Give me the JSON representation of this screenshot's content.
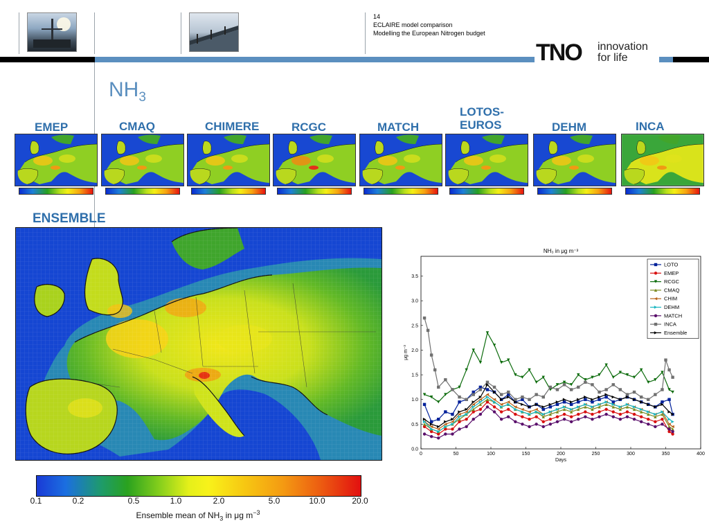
{
  "header": {
    "slide_number": "14",
    "line1": "ECLAIRE model comparison",
    "line2": "Modelling the European Nitrogen budget",
    "brand": "TNO",
    "tagline_1": "innovation",
    "tagline_2": "for life"
  },
  "title": {
    "main": "NH",
    "sub": "3"
  },
  "models": {
    "emep": "EMEP",
    "cmaq": "CMAQ",
    "chimere": "CHIMERE",
    "rcgc": "RCGC",
    "match": "MATCH",
    "lotos_1": "LOTOS-",
    "lotos_2": "EUROS",
    "dehm": "DEHM",
    "inca": "INCA"
  },
  "ensemble": {
    "label": "ENSEMBLE",
    "colorbar_ticks": [
      "0.1",
      "0.2",
      "0.5",
      "1.0",
      "2.0",
      "5.0",
      "10.0",
      "20.0"
    ],
    "colorbar_label_prefix": "Ensemble mean of NH",
    "colorbar_label_sub": "3",
    "colorbar_label_suffix": " in μg m",
    "colorbar_label_sup": "−3"
  },
  "chart_data": {
    "type": "line",
    "title": "NH₃ in μg m⁻³",
    "xlabel": "Days",
    "ylabel": "μg m⁻³",
    "xlim": [
      0,
      400
    ],
    "ylim": [
      0.0,
      3.9
    ],
    "xticks": [
      0,
      50,
      100,
      150,
      200,
      250,
      300,
      350,
      400
    ],
    "yticks": [
      0.0,
      0.5,
      1.0,
      1.5,
      2.0,
      2.5,
      3.0,
      3.5
    ],
    "legend_position": "top-right",
    "series": [
      {
        "name": "LOTO",
        "color": "#00209a",
        "marker": "square",
        "x": [
          5,
          15,
          25,
          35,
          45,
          55,
          65,
          75,
          85,
          95,
          105,
          115,
          125,
          135,
          145,
          155,
          165,
          175,
          185,
          195,
          205,
          215,
          225,
          235,
          245,
          255,
          265,
          275,
          285,
          295,
          305,
          315,
          325,
          335,
          345,
          355,
          360
        ],
        "y": [
          0.9,
          0.55,
          0.6,
          0.75,
          0.7,
          0.95,
          1.0,
          1.15,
          1.25,
          1.2,
          1.15,
          1.0,
          1.1,
          0.95,
          1.0,
          0.85,
          0.9,
          0.8,
          0.85,
          0.9,
          0.95,
          0.9,
          0.95,
          1.0,
          0.95,
          1.0,
          1.05,
          0.95,
          1.0,
          1.05,
          1.0,
          0.95,
          0.9,
          0.85,
          0.95,
          1.0,
          0.7
        ]
      },
      {
        "name": "EMEP",
        "color": "#d81010",
        "marker": "circle",
        "x": [
          5,
          15,
          25,
          35,
          45,
          55,
          65,
          75,
          85,
          95,
          105,
          115,
          125,
          135,
          145,
          155,
          165,
          175,
          185,
          195,
          205,
          215,
          225,
          235,
          245,
          255,
          265,
          275,
          285,
          295,
          305,
          315,
          325,
          335,
          345,
          355,
          360
        ],
        "y": [
          0.45,
          0.35,
          0.3,
          0.4,
          0.4,
          0.55,
          0.6,
          0.75,
          0.8,
          0.95,
          0.85,
          0.75,
          0.8,
          0.7,
          0.65,
          0.6,
          0.65,
          0.55,
          0.6,
          0.65,
          0.7,
          0.65,
          0.7,
          0.75,
          0.7,
          0.75,
          0.8,
          0.75,
          0.7,
          0.75,
          0.7,
          0.65,
          0.6,
          0.55,
          0.6,
          0.35,
          0.3
        ]
      },
      {
        "name": "RCGC",
        "color": "#0b6b0b",
        "marker": "triangle-down",
        "x": [
          5,
          15,
          25,
          35,
          45,
          55,
          65,
          75,
          85,
          95,
          105,
          115,
          125,
          135,
          145,
          155,
          165,
          175,
          185,
          195,
          205,
          215,
          225,
          235,
          245,
          255,
          265,
          275,
          285,
          295,
          305,
          315,
          325,
          335,
          345,
          355,
          360
        ],
        "y": [
          1.1,
          1.05,
          0.95,
          1.1,
          1.2,
          1.25,
          1.6,
          2.0,
          1.75,
          2.35,
          2.1,
          1.75,
          1.8,
          1.5,
          1.45,
          1.6,
          1.35,
          1.45,
          1.2,
          1.3,
          1.35,
          1.3,
          1.5,
          1.4,
          1.45,
          1.5,
          1.7,
          1.45,
          1.55,
          1.5,
          1.45,
          1.6,
          1.35,
          1.4,
          1.55,
          1.2,
          1.15
        ]
      },
      {
        "name": "CMAQ",
        "color": "#7a8a20",
        "marker": "triangle-up",
        "x": [
          5,
          15,
          25,
          35,
          45,
          55,
          65,
          75,
          85,
          95,
          105,
          115,
          125,
          135,
          145,
          155,
          165,
          175,
          185,
          195,
          205,
          215,
          225,
          235,
          245,
          255,
          265,
          275,
          285,
          295,
          305,
          315,
          325,
          335,
          345,
          355,
          360
        ],
        "y": [
          0.5,
          0.4,
          0.35,
          0.45,
          0.5,
          0.6,
          0.7,
          0.8,
          0.9,
          1.0,
          0.95,
          0.85,
          0.9,
          0.8,
          0.75,
          0.7,
          0.75,
          0.65,
          0.7,
          0.75,
          0.8,
          0.75,
          0.8,
          0.85,
          0.8,
          0.85,
          0.9,
          0.85,
          0.8,
          0.85,
          0.8,
          0.75,
          0.7,
          0.65,
          0.7,
          0.45,
          0.4
        ]
      },
      {
        "name": "CHIM",
        "color": "#b8621a",
        "marker": "triangle-left",
        "x": [
          5,
          15,
          25,
          35,
          45,
          55,
          65,
          75,
          85,
          95,
          105,
          115,
          125,
          135,
          145,
          155,
          165,
          175,
          185,
          195,
          205,
          215,
          225,
          235,
          245,
          255,
          265,
          275,
          285,
          295,
          305,
          315,
          325,
          335,
          345,
          355,
          360
        ],
        "y": [
          0.55,
          0.45,
          0.4,
          0.5,
          0.55,
          0.7,
          0.75,
          0.9,
          1.0,
          1.1,
          1.0,
          0.9,
          0.95,
          0.85,
          0.8,
          0.75,
          0.8,
          0.7,
          0.75,
          0.8,
          0.85,
          0.8,
          0.85,
          0.9,
          0.85,
          0.9,
          0.95,
          0.9,
          0.85,
          0.9,
          0.85,
          0.8,
          0.75,
          0.7,
          0.75,
          0.5,
          0.45
        ]
      },
      {
        "name": "DEHM",
        "color": "#18b6c0",
        "marker": "triangle-right",
        "x": [
          5,
          15,
          25,
          35,
          45,
          55,
          65,
          75,
          85,
          95,
          105,
          115,
          125,
          135,
          145,
          155,
          165,
          175,
          185,
          195,
          205,
          215,
          225,
          235,
          245,
          255,
          265,
          275,
          285,
          295,
          305,
          315,
          325,
          335,
          345,
          355,
          360
        ],
        "y": [
          0.55,
          0.4,
          0.35,
          0.45,
          0.5,
          0.65,
          0.7,
          0.85,
          0.95,
          1.05,
          0.95,
          0.85,
          0.9,
          0.8,
          0.75,
          0.7,
          0.75,
          0.7,
          0.75,
          0.8,
          0.85,
          0.8,
          0.85,
          0.9,
          0.85,
          0.9,
          0.95,
          0.9,
          0.85,
          0.9,
          0.85,
          0.8,
          0.75,
          0.7,
          0.75,
          0.6,
          0.55
        ]
      },
      {
        "name": "MATCH",
        "color": "#5a0f6b",
        "marker": "circle",
        "x": [
          5,
          15,
          25,
          35,
          45,
          55,
          65,
          75,
          85,
          95,
          105,
          115,
          125,
          135,
          145,
          155,
          165,
          175,
          185,
          195,
          205,
          215,
          225,
          235,
          245,
          255,
          265,
          275,
          285,
          295,
          305,
          315,
          325,
          335,
          345,
          355,
          360
        ],
        "y": [
          0.3,
          0.25,
          0.22,
          0.3,
          0.3,
          0.4,
          0.45,
          0.6,
          0.7,
          0.85,
          0.75,
          0.6,
          0.65,
          0.55,
          0.5,
          0.45,
          0.5,
          0.45,
          0.5,
          0.55,
          0.6,
          0.55,
          0.6,
          0.65,
          0.6,
          0.65,
          0.7,
          0.65,
          0.6,
          0.65,
          0.6,
          0.55,
          0.5,
          0.45,
          0.5,
          0.4,
          0.35
        ]
      },
      {
        "name": "INCA",
        "color": "#707070",
        "marker": "square",
        "x": [
          5,
          10,
          15,
          20,
          25,
          35,
          45,
          55,
          65,
          75,
          85,
          95,
          105,
          115,
          125,
          135,
          145,
          155,
          165,
          175,
          185,
          195,
          205,
          215,
          225,
          235,
          245,
          255,
          265,
          275,
          285,
          295,
          305,
          315,
          325,
          335,
          345,
          350,
          355,
          360
        ],
        "y": [
          2.65,
          2.4,
          1.9,
          1.6,
          1.25,
          1.4,
          1.2,
          1.05,
          1.0,
          1.1,
          1.2,
          1.35,
          1.25,
          1.1,
          1.15,
          1.0,
          1.05,
          1.0,
          1.1,
          1.05,
          1.25,
          1.2,
          1.3,
          1.2,
          1.25,
          1.35,
          1.3,
          1.15,
          1.2,
          1.3,
          1.2,
          1.1,
          1.15,
          1.05,
          1.0,
          1.1,
          1.2,
          1.8,
          1.6,
          1.45
        ]
      },
      {
        "name": "Ensemble",
        "color": "#000000",
        "marker": "triangle-right",
        "x": [
          5,
          15,
          25,
          35,
          45,
          55,
          65,
          75,
          85,
          95,
          105,
          115,
          125,
          135,
          145,
          155,
          165,
          175,
          185,
          195,
          205,
          215,
          225,
          235,
          245,
          255,
          265,
          275,
          285,
          295,
          305,
          315,
          325,
          335,
          345,
          355,
          360
        ],
        "y": [
          0.6,
          0.5,
          0.45,
          0.55,
          0.6,
          0.75,
          0.8,
          0.95,
          1.05,
          1.3,
          1.15,
          1.0,
          1.05,
          0.95,
          0.9,
          0.85,
          0.9,
          0.85,
          0.9,
          0.95,
          1.0,
          0.95,
          1.0,
          1.05,
          1.0,
          1.05,
          1.1,
          1.05,
          1.0,
          1.05,
          1.0,
          0.95,
          0.9,
          0.85,
          0.9,
          0.75,
          0.7
        ]
      }
    ]
  }
}
